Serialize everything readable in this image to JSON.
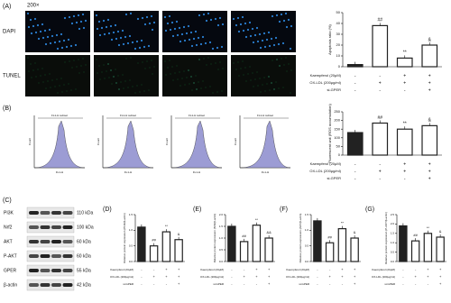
{
  "magnification": "200×",
  "rows": [
    "DAPI",
    "TUNEL"
  ],
  "flow": {
    "panel": "(B)",
    "histograms": [
      {
        "gate": "FL1-H subset",
        "x_label": "FL1-H",
        "y_label": "Count"
      },
      {
        "gate": "FL1-H subset",
        "x_label": "FL1-H",
        "y_label": "Count"
      },
      {
        "gate": "FL1-H subset",
        "x_label": "FL1-H",
        "y_label": "Count"
      },
      {
        "gate": "FL1-H subset",
        "x_label": "FL1-H",
        "y_label": "Count"
      }
    ]
  },
  "blot": {
    "panel": "(C)",
    "proteins": [
      {
        "name": "PI3K",
        "size": "110 kDa"
      },
      {
        "name": "Nrf2",
        "size": "100 kDa"
      },
      {
        "name": "AKT",
        "size": "60 kDa"
      },
      {
        "name": "P-AKT",
        "size": "60 kDa"
      },
      {
        "name": "GPER",
        "size": "55 kDa"
      },
      {
        "name": "β-actin",
        "size": "42 kDa"
      }
    ]
  },
  "chart_data": [
    {
      "type": "bar",
      "panel": "(A)",
      "y_label": "Apoptosis ratio (%)",
      "values": [
        2,
        38,
        8,
        20
      ],
      "annotations": [
        null,
        "##",
        "**",
        "&"
      ],
      "color": "#222222",
      "ylim": [
        0,
        50
      ],
      "yticks": [
        0,
        10,
        20,
        30,
        40,
        50
      ],
      "treatments": [
        {
          "label": "Kaempferol (20μM)",
          "signs": [
            "-",
            "-",
            "+",
            "+"
          ]
        },
        {
          "label": "OX-LDL (200μg/ml)",
          "signs": [
            "-",
            "+",
            "+",
            "+"
          ]
        },
        {
          "label": "si-GPER",
          "signs": [
            "-",
            "-",
            "-",
            "+"
          ]
        }
      ]
    },
    {
      "type": "bar",
      "panel": "(B)",
      "y_label": "Fluorescent unit (ROS accumulation)",
      "values": [
        130,
        185,
        150,
        170
      ],
      "annotations": [
        null,
        "##",
        "**",
        "&"
      ],
      "color": "#222222",
      "ylim": [
        0,
        250
      ],
      "yticks": [
        0,
        50,
        100,
        150,
        200,
        250
      ],
      "treatments": [
        {
          "label": "Kaempferol (20μM)",
          "signs": [
            "-",
            "-",
            "+",
            "+"
          ]
        },
        {
          "label": "OX-LDL (200μg/ml)",
          "signs": [
            "-",
            "+",
            "+",
            "+"
          ]
        },
        {
          "label": "si-GPER",
          "signs": [
            "-",
            "-",
            "-",
            "+"
          ]
        }
      ]
    },
    {
      "type": "bar",
      "panel": "(D)",
      "y_label": "Relative protein expression (PI3K/β-actin)",
      "values": [
        1.1,
        0.5,
        0.95,
        0.7
      ],
      "annotations": [
        null,
        "##",
        "**",
        "&"
      ],
      "color": "#222222",
      "ylim": [
        0,
        1.5
      ],
      "yticks": [
        {
          "value": 0,
          "label": "0.0"
        },
        {
          "value": 0.5,
          "label": "0.5"
        },
        {
          "value": 1,
          "label": "1.0"
        },
        {
          "value": 1.5,
          "label": "1.5"
        }
      ],
      "treatments": [
        {
          "label": "Kaempferol (20μM)",
          "signs": [
            "-",
            "-",
            "+",
            "+"
          ]
        },
        {
          "label": "OX-LDL (200μg/ml)",
          "signs": [
            "-",
            "+",
            "+",
            "+"
          ]
        },
        {
          "label": "si-GPER",
          "signs": [
            "-",
            "-",
            "-",
            "+"
          ]
        }
      ]
    },
    {
      "type": "bar",
      "panel": "(E)",
      "y_label": "Relative protein expression (Nrf2/β-actin)",
      "values": [
        1.5,
        0.85,
        1.55,
        1
      ],
      "annotations": [
        null,
        "##",
        "**",
        "&&"
      ],
      "color": "#222222",
      "ylim": [
        0,
        2
      ],
      "yticks": [
        {
          "value": 0,
          "label": "0.0"
        },
        {
          "value": 0.5,
          "label": "0.5"
        },
        {
          "value": 1,
          "label": "1.0"
        },
        {
          "value": 1.5,
          "label": "1.5"
        },
        {
          "value": 2,
          "label": "2.0"
        }
      ],
      "treatments": [
        {
          "label": "Kaempferol (20μM)",
          "signs": [
            "-",
            "-",
            "+",
            "+"
          ]
        },
        {
          "label": "OX-LDL (200μg/ml)",
          "signs": [
            "-",
            "+",
            "+",
            "+"
          ]
        },
        {
          "label": "si-GPER",
          "signs": [
            "-",
            "-",
            "-",
            "+"
          ]
        }
      ]
    },
    {
      "type": "bar",
      "panel": "(F)",
      "y_label": "Relative protein expression (AKT/β-actin)",
      "values": [
        1.3,
        0.6,
        1.05,
        0.75
      ],
      "annotations": [
        null,
        "##",
        "**",
        "&"
      ],
      "color": "#222222",
      "ylim": [
        0,
        1.5
      ],
      "yticks": [
        {
          "value": 0,
          "label": "0.0"
        },
        {
          "value": 0.5,
          "label": "0.5"
        },
        {
          "value": 1,
          "label": "1.0"
        },
        {
          "value": 1.5,
          "label": "1.5"
        }
      ],
      "treatments": [
        {
          "label": "Kaempferol (20μM)",
          "signs": [
            "-",
            "-",
            "+",
            "+"
          ]
        },
        {
          "label": "OX-LDL (200μg/ml)",
          "signs": [
            "-",
            "+",
            "+",
            "+"
          ]
        },
        {
          "label": "si-GPER",
          "signs": [
            "-",
            "-",
            "-",
            "+"
          ]
        }
      ]
    },
    {
      "type": "bar",
      "panel": "(G)",
      "y_label": "Relative protein expression (P-AKT/β-actin)",
      "values": [
        1.9,
        1.1,
        1.5,
        1.3
      ],
      "annotations": [
        null,
        "##",
        "**",
        "&"
      ],
      "color": "#222222",
      "ylim": [
        0,
        2.5
      ],
      "yticks": [
        {
          "value": 0,
          "label": "0.0"
        },
        {
          "value": 0.5,
          "label": "0.5"
        },
        {
          "value": 1,
          "label": "1.0"
        },
        {
          "value": 1.5,
          "label": "1.5"
        },
        {
          "value": 2,
          "label": "2.0"
        },
        {
          "value": 2.5,
          "label": "2.5"
        }
      ],
      "treatments": [
        {
          "label": "Kaempferol (20μM)",
          "signs": [
            "-",
            "-",
            "+",
            "+"
          ]
        },
        {
          "label": "OX-LDL (200μg/ml)",
          "signs": [
            "-",
            "+",
            "+",
            "+"
          ]
        },
        {
          "label": "si-GPER",
          "signs": [
            "-",
            "-",
            "-",
            "+"
          ]
        }
      ]
    }
  ]
}
